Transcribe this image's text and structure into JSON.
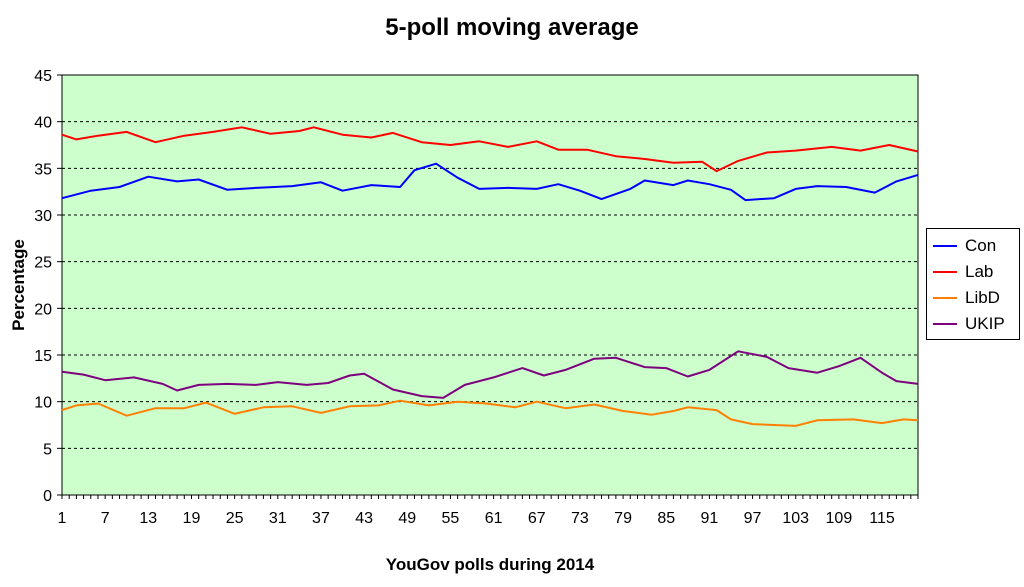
{
  "chart_data": {
    "type": "line",
    "title": "5-poll moving average",
    "xlabel": "YouGov polls during 2014",
    "ylabel": "Percentage",
    "xlim": [
      1,
      120
    ],
    "ylim": [
      0,
      45
    ],
    "y_ticks": [
      0,
      5,
      10,
      15,
      20,
      25,
      30,
      35,
      40,
      45
    ],
    "x_ticks": [
      1,
      7,
      13,
      19,
      25,
      31,
      37,
      43,
      49,
      55,
      61,
      67,
      73,
      79,
      85,
      91,
      97,
      103,
      109,
      115
    ],
    "grid": "horizontal dashed",
    "plot_background": "#ccffcc",
    "legend_position": "right",
    "series": [
      {
        "name": "Con",
        "color": "#0000ff",
        "points": [
          [
            1,
            31.8
          ],
          [
            5,
            32.6
          ],
          [
            9,
            33.0
          ],
          [
            13,
            34.1
          ],
          [
            17,
            33.6
          ],
          [
            20,
            33.8
          ],
          [
            24,
            32.7
          ],
          [
            28,
            32.9
          ],
          [
            33,
            33.1
          ],
          [
            37,
            33.5
          ],
          [
            40,
            32.6
          ],
          [
            44,
            33.2
          ],
          [
            48,
            33.0
          ],
          [
            50,
            34.8
          ],
          [
            53,
            35.5
          ],
          [
            56,
            34.0
          ],
          [
            59,
            32.8
          ],
          [
            63,
            32.9
          ],
          [
            67,
            32.8
          ],
          [
            70,
            33.3
          ],
          [
            73,
            32.6
          ],
          [
            76,
            31.7
          ],
          [
            80,
            32.8
          ],
          [
            82,
            33.7
          ],
          [
            86,
            33.2
          ],
          [
            88,
            33.7
          ],
          [
            91,
            33.3
          ],
          [
            94,
            32.7
          ],
          [
            96,
            31.6
          ],
          [
            100,
            31.8
          ],
          [
            103,
            32.8
          ],
          [
            106,
            33.1
          ],
          [
            110,
            33.0
          ],
          [
            114,
            32.4
          ],
          [
            117,
            33.6
          ],
          [
            120,
            34.3
          ]
        ]
      },
      {
        "name": "Lab",
        "color": "#ff0000",
        "points": [
          [
            1,
            38.6
          ],
          [
            3,
            38.1
          ],
          [
            6,
            38.5
          ],
          [
            10,
            38.9
          ],
          [
            14,
            37.8
          ],
          [
            18,
            38.5
          ],
          [
            22,
            38.9
          ],
          [
            26,
            39.4
          ],
          [
            30,
            38.7
          ],
          [
            34,
            39.0
          ],
          [
            36,
            39.4
          ],
          [
            40,
            38.6
          ],
          [
            44,
            38.3
          ],
          [
            47,
            38.8
          ],
          [
            51,
            37.8
          ],
          [
            55,
            37.5
          ],
          [
            59,
            37.9
          ],
          [
            63,
            37.3
          ],
          [
            67,
            37.9
          ],
          [
            70,
            37.0
          ],
          [
            74,
            37.0
          ],
          [
            78,
            36.3
          ],
          [
            82,
            36.0
          ],
          [
            86,
            35.6
          ],
          [
            90,
            35.7
          ],
          [
            92,
            34.7
          ],
          [
            95,
            35.8
          ],
          [
            99,
            36.7
          ],
          [
            103,
            36.9
          ],
          [
            108,
            37.3
          ],
          [
            112,
            36.9
          ],
          [
            116,
            37.5
          ],
          [
            120,
            36.8
          ]
        ]
      },
      {
        "name": "LibD",
        "color": "#ff8000",
        "points": [
          [
            1,
            9.1
          ],
          [
            3,
            9.6
          ],
          [
            6,
            9.8
          ],
          [
            10,
            8.5
          ],
          [
            14,
            9.3
          ],
          [
            18,
            9.3
          ],
          [
            21,
            9.9
          ],
          [
            25,
            8.7
          ],
          [
            29,
            9.4
          ],
          [
            33,
            9.5
          ],
          [
            37,
            8.8
          ],
          [
            41,
            9.5
          ],
          [
            45,
            9.6
          ],
          [
            48,
            10.1
          ],
          [
            52,
            9.6
          ],
          [
            56,
            10.0
          ],
          [
            60,
            9.8
          ],
          [
            64,
            9.4
          ],
          [
            67,
            10.0
          ],
          [
            71,
            9.3
          ],
          [
            75,
            9.7
          ],
          [
            79,
            9.0
          ],
          [
            83,
            8.6
          ],
          [
            86,
            9.0
          ],
          [
            88,
            9.4
          ],
          [
            92,
            9.1
          ],
          [
            94,
            8.1
          ],
          [
            97,
            7.6
          ],
          [
            100,
            7.5
          ],
          [
            103,
            7.4
          ],
          [
            106,
            8.0
          ],
          [
            111,
            8.1
          ],
          [
            115,
            7.7
          ],
          [
            118,
            8.1
          ],
          [
            120,
            8.0
          ]
        ]
      },
      {
        "name": "UKIP",
        "color": "#7f007f",
        "points": [
          [
            1,
            13.2
          ],
          [
            4,
            12.9
          ],
          [
            7,
            12.3
          ],
          [
            11,
            12.6
          ],
          [
            15,
            11.9
          ],
          [
            17,
            11.2
          ],
          [
            20,
            11.8
          ],
          [
            24,
            11.9
          ],
          [
            28,
            11.8
          ],
          [
            31,
            12.1
          ],
          [
            35,
            11.8
          ],
          [
            38,
            12.0
          ],
          [
            41,
            12.8
          ],
          [
            43,
            13.0
          ],
          [
            47,
            11.3
          ],
          [
            51,
            10.6
          ],
          [
            54,
            10.4
          ],
          [
            57,
            11.8
          ],
          [
            61,
            12.6
          ],
          [
            65,
            13.6
          ],
          [
            68,
            12.8
          ],
          [
            71,
            13.4
          ],
          [
            75,
            14.6
          ],
          [
            78,
            14.7
          ],
          [
            82,
            13.7
          ],
          [
            85,
            13.6
          ],
          [
            88,
            12.7
          ],
          [
            91,
            13.4
          ],
          [
            95,
            15.4
          ],
          [
            99,
            14.8
          ],
          [
            102,
            13.6
          ],
          [
            106,
            13.1
          ],
          [
            109,
            13.8
          ],
          [
            112,
            14.7
          ],
          [
            115,
            13.1
          ],
          [
            117,
            12.2
          ],
          [
            120,
            11.9
          ]
        ]
      }
    ]
  }
}
